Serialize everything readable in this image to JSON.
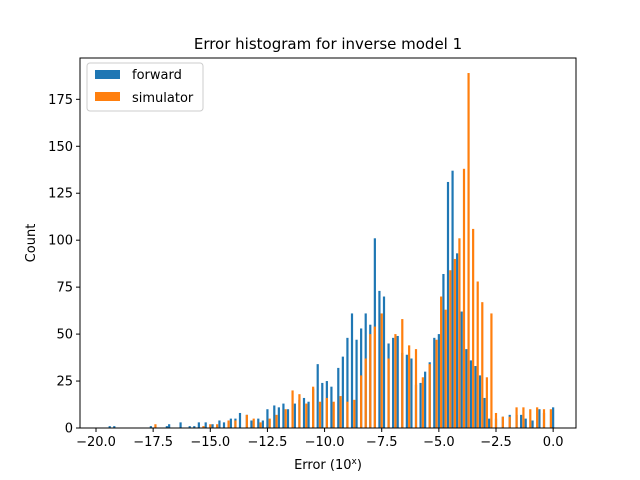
{
  "chart_data": {
    "type": "bar",
    "title": "Error histogram for inverse model 1",
    "xlabel": "Error (10",
    "xlabel_sup": "x",
    "xlabel_close": ")",
    "ylabel": "Count",
    "xlim": [
      -20.7,
      1.0
    ],
    "ylim": [
      0,
      197
    ],
    "xticks": [
      -20.0,
      -17.5,
      -15.0,
      -12.5,
      -10.0,
      -7.5,
      -5.0,
      -2.5,
      0.0
    ],
    "xtick_labels": [
      "−20.0",
      "−17.5",
      "−15.0",
      "−12.5",
      "−10.0",
      "−7.5",
      "−5.0",
      "−2.5",
      "0.0"
    ],
    "yticks": [
      0,
      25,
      50,
      75,
      100,
      125,
      150,
      175
    ],
    "ytick_labels": [
      "0",
      "25",
      "50",
      "75",
      "100",
      "125",
      "150",
      "175"
    ],
    "grid": false,
    "legend_position": "top-left",
    "series": [
      {
        "name": "forward",
        "color": "#1f77b4",
        "points": [
          [
            -19.4,
            1
          ],
          [
            -19.2,
            1
          ],
          [
            -17.6,
            1
          ],
          [
            -16.9,
            1
          ],
          [
            -16.8,
            2
          ],
          [
            -16.3,
            3
          ],
          [
            -15.9,
            1
          ],
          [
            -15.7,
            1
          ],
          [
            -15.5,
            3
          ],
          [
            -15.2,
            3
          ],
          [
            -14.9,
            2
          ],
          [
            -14.6,
            4
          ],
          [
            -14.4,
            3
          ],
          [
            -14.1,
            5
          ],
          [
            -13.9,
            5
          ],
          [
            -13.7,
            8
          ],
          [
            -13.4,
            7
          ],
          [
            -13.2,
            4
          ],
          [
            -12.9,
            5
          ],
          [
            -12.7,
            4
          ],
          [
            -12.5,
            10
          ],
          [
            -12.2,
            12
          ],
          [
            -12.0,
            11
          ],
          [
            -11.8,
            13
          ],
          [
            -11.6,
            10
          ],
          [
            -11.3,
            13
          ],
          [
            -11.1,
            15
          ],
          [
            -10.9,
            16
          ],
          [
            -10.7,
            14
          ],
          [
            -10.5,
            21
          ],
          [
            -10.3,
            34
          ],
          [
            -10.1,
            24
          ],
          [
            -9.9,
            25
          ],
          [
            -9.7,
            22
          ],
          [
            -9.4,
            32
          ],
          [
            -9.2,
            38
          ],
          [
            -9.0,
            48
          ],
          [
            -8.8,
            61
          ],
          [
            -8.6,
            47
          ],
          [
            -8.4,
            53
          ],
          [
            -8.2,
            61
          ],
          [
            -8.0,
            55
          ],
          [
            -7.8,
            101
          ],
          [
            -7.6,
            73
          ],
          [
            -7.4,
            70
          ],
          [
            -7.2,
            45
          ],
          [
            -7.0,
            48
          ],
          [
            -6.8,
            49
          ],
          [
            -6.6,
            40
          ],
          [
            -6.4,
            39
          ],
          [
            -6.2,
            37
          ],
          [
            -6.0,
            23
          ],
          [
            -5.8,
            24
          ],
          [
            -5.6,
            30
          ],
          [
            -5.4,
            35
          ],
          [
            -5.2,
            48
          ],
          [
            -5.0,
            50
          ],
          [
            -4.8,
            82
          ],
          [
            -4.6,
            131
          ],
          [
            -4.4,
            137
          ],
          [
            -4.2,
            93
          ],
          [
            -4.0,
            62
          ],
          [
            -3.8,
            42
          ],
          [
            -3.6,
            36
          ],
          [
            -3.4,
            33
          ],
          [
            -3.2,
            28
          ],
          [
            -3.0,
            16
          ],
          [
            -2.8,
            5
          ],
          [
            -2.5,
            5
          ],
          [
            -2.2,
            6
          ],
          [
            -1.9,
            7
          ],
          [
            -1.6,
            7
          ],
          [
            -1.4,
            7
          ],
          [
            -1.2,
            5
          ],
          [
            -0.9,
            4
          ],
          [
            -0.6,
            10
          ],
          [
            -0.4,
            8
          ],
          [
            0.0,
            11
          ]
        ]
      },
      {
        "name": "simulator",
        "color": "#ff7f0e",
        "points": [
          [
            -17.4,
            2
          ],
          [
            -15.3,
            1
          ],
          [
            -15.0,
            2
          ],
          [
            -14.7,
            2
          ],
          [
            -14.2,
            4
          ],
          [
            -13.9,
            4
          ],
          [
            -13.4,
            7
          ],
          [
            -13.1,
            5
          ],
          [
            -12.8,
            3
          ],
          [
            -12.4,
            5
          ],
          [
            -12.1,
            7
          ],
          [
            -11.7,
            10
          ],
          [
            -11.4,
            20
          ],
          [
            -11.1,
            18
          ],
          [
            -10.8,
            13
          ],
          [
            -10.5,
            22
          ],
          [
            -10.2,
            14
          ],
          [
            -9.9,
            16
          ],
          [
            -9.6,
            14
          ],
          [
            -9.3,
            17
          ],
          [
            -9.0,
            14
          ],
          [
            -8.7,
            15
          ],
          [
            -8.4,
            28
          ],
          [
            -8.2,
            37
          ],
          [
            -8.0,
            50
          ],
          [
            -7.8,
            54
          ],
          [
            -7.5,
            61
          ],
          [
            -7.2,
            37
          ],
          [
            -6.9,
            50
          ],
          [
            -6.6,
            58
          ],
          [
            -6.3,
            44
          ],
          [
            -6.0,
            42
          ],
          [
            -5.7,
            27
          ],
          [
            -5.4,
            34
          ],
          [
            -5.1,
            47
          ],
          [
            -4.9,
            70
          ],
          [
            -4.7,
            63
          ],
          [
            -4.5,
            84
          ],
          [
            -4.3,
            90
          ],
          [
            -4.1,
            101
          ],
          [
            -3.9,
            138
          ],
          [
            -3.7,
            189
          ],
          [
            -3.5,
            106
          ],
          [
            -3.3,
            78
          ],
          [
            -3.1,
            67
          ],
          [
            -2.9,
            27
          ],
          [
            -2.7,
            61
          ],
          [
            -2.5,
            8
          ],
          [
            -2.2,
            6
          ],
          [
            -1.9,
            6
          ],
          [
            -1.6,
            11
          ],
          [
            -1.3,
            11
          ],
          [
            -1.0,
            10
          ],
          [
            -0.7,
            11
          ],
          [
            -0.4,
            10
          ],
          [
            -0.1,
            10
          ]
        ]
      }
    ]
  }
}
